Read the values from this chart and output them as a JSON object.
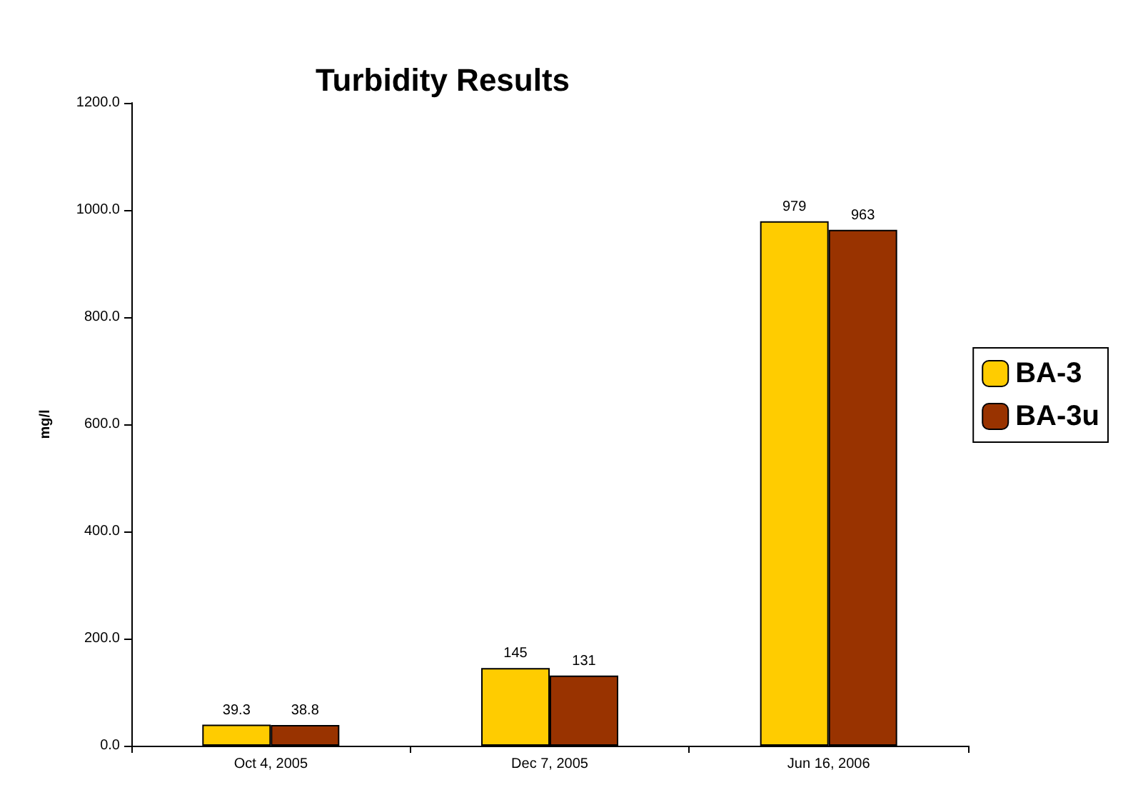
{
  "chart_data": {
    "type": "bar",
    "title": "Turbidity Results",
    "ylabel": "mg/l",
    "categories": [
      "Oct 4, 2005",
      "Dec 7, 2005",
      "Jun 16, 2006"
    ],
    "series": [
      {
        "name": "BA-3",
        "color": "#ffcc00",
        "values": [
          39.3,
          145,
          979
        ]
      },
      {
        "name": "BA-3u",
        "color": "#993300",
        "values": [
          38.8,
          131,
          963
        ]
      }
    ],
    "ylim": [
      0,
      1200
    ],
    "yticks": [
      {
        "value": 0,
        "label": "0.0"
      },
      {
        "value": 200,
        "label": "200.0"
      },
      {
        "value": 400,
        "label": "400.0"
      },
      {
        "value": 600,
        "label": "600.0"
      },
      {
        "value": 800,
        "label": "800.0"
      },
      {
        "value": 1000,
        "label": "1000.0"
      },
      {
        "value": 1200,
        "label": "1200.0"
      }
    ],
    "data_labels": true,
    "grid": false,
    "legend": "right"
  }
}
